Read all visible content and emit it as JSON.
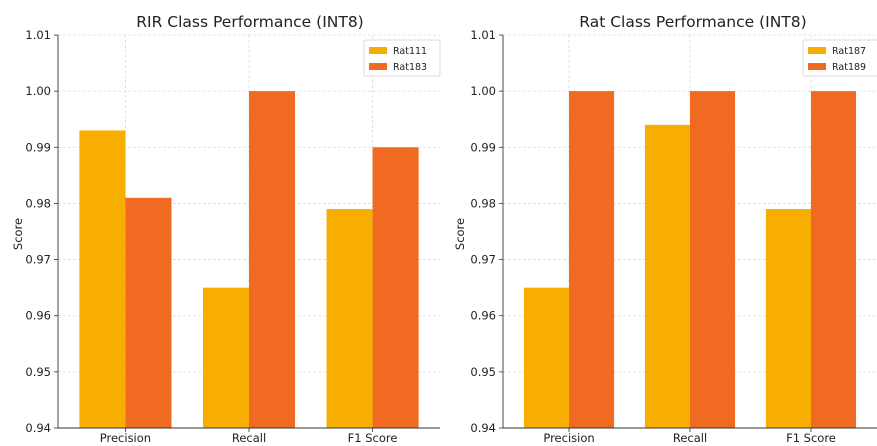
{
  "chart_data": [
    {
      "type": "bar",
      "title": "RIR Class Performance (INT8)",
      "xlabel": "",
      "ylabel": "Score",
      "ylim": [
        0.94,
        1.01
      ],
      "yticks": [
        "0.94",
        "0.95",
        "0.96",
        "0.97",
        "0.98",
        "0.99",
        "1.00",
        "1.01"
      ],
      "categories": [
        "Precision",
        "Recall",
        "F1 Score"
      ],
      "series": [
        {
          "name": "Rat111",
          "values": [
            0.993,
            0.965,
            0.979
          ],
          "color": "#F8AE00"
        },
        {
          "name": "Rat183",
          "values": [
            0.981,
            1.0,
            0.99
          ],
          "color": "#F06A22"
        }
      ],
      "grid": true,
      "legend": "top-right"
    },
    {
      "type": "bar",
      "title": "Rat Class Performance (INT8)",
      "xlabel": "",
      "ylabel": "Score",
      "ylim": [
        0.94,
        1.01
      ],
      "yticks": [
        "0.94",
        "0.95",
        "0.96",
        "0.97",
        "0.98",
        "0.99",
        "1.00",
        "1.01"
      ],
      "categories": [
        "Precision",
        "Recall",
        "F1 Score"
      ],
      "series": [
        {
          "name": "Rat187",
          "values": [
            0.965,
            0.994,
            0.979
          ],
          "color": "#F8AE00"
        },
        {
          "name": "Rat189",
          "values": [
            1.0,
            1.0,
            1.0
          ],
          "color": "#F06A22"
        }
      ],
      "grid": true,
      "legend": "top-right"
    }
  ]
}
